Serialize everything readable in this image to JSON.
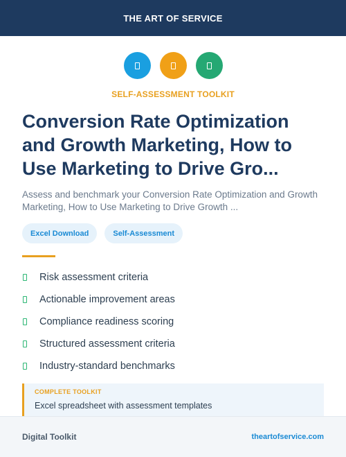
{
  "header": {
    "title": "THE ART OF SERVICE"
  },
  "icons": [
    {
      "name": "document-icon",
      "color": "#1a9fe0"
    },
    {
      "name": "clipboard-icon",
      "color": "#f0a017"
    },
    {
      "name": "checklist-icon",
      "color": "#25a873"
    }
  ],
  "kicker": "SELF-ASSESSMENT TOOLKIT",
  "title": "Conversion Rate Optimization and Growth Marketing, How to Use Marketing to Drive Gro...",
  "description": "Assess and benchmark your Conversion Rate Optimization and Growth Marketing, How to Use Marketing to Drive Growth ...",
  "tags": [
    "Excel Download",
    "Self-Assessment"
  ],
  "features": [
    "Risk assessment criteria",
    "Actionable improvement areas",
    "Compliance readiness scoring",
    "Structured assessment criteria",
    "Industry-standard benchmarks"
  ],
  "callout": {
    "title": "COMPLETE TOOLKIT",
    "text": "Excel spreadsheet with assessment templates"
  },
  "footer": {
    "left": "Digital Toolkit",
    "right": "theartofservice.com"
  }
}
